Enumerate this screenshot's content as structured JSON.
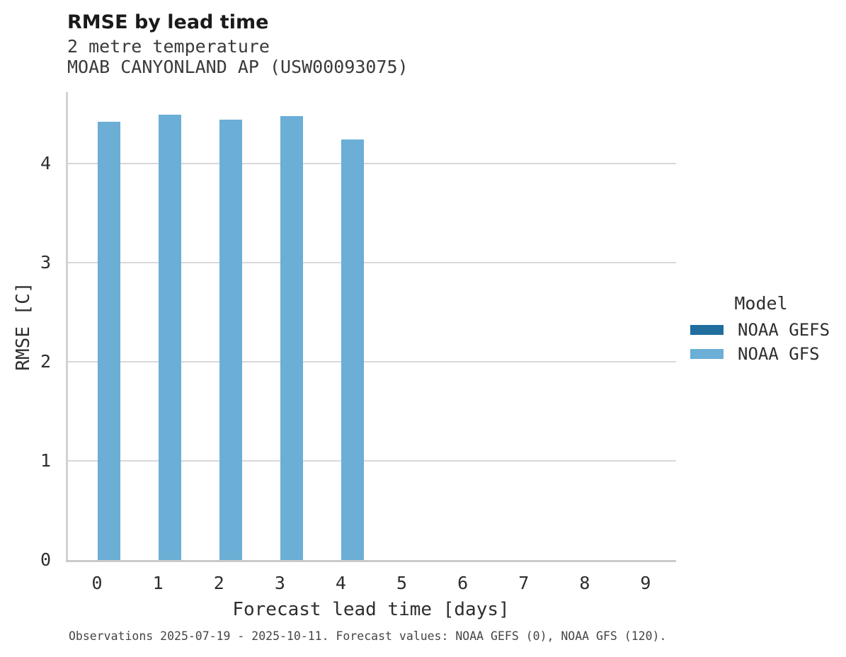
{
  "header": {
    "title": "RMSE by lead time",
    "subtitle_line1": "2 metre temperature",
    "subtitle_line2": "MOAB CANYONLAND AP (USW00093075)"
  },
  "chart_data": {
    "type": "bar",
    "title": "RMSE by lead time",
    "subtitle": [
      "2 metre temperature",
      "MOAB CANYONLAND AP (USW00093075)"
    ],
    "xlabel": "Forecast lead time [days]",
    "ylabel": "RMSE [C]",
    "categories": [
      "0",
      "1",
      "2",
      "3",
      "4",
      "5",
      "6",
      "7",
      "8",
      "9"
    ],
    "series": [
      {
        "name": "NOAA GEFS",
        "color": "#1f6e9e",
        "values": [
          null,
          null,
          null,
          null,
          null,
          null,
          null,
          null,
          null,
          null
        ]
      },
      {
        "name": "NOAA GFS",
        "color": "#6baed6",
        "values": [
          4.42,
          4.49,
          4.44,
          4.48,
          4.24,
          null,
          null,
          null,
          null,
          null
        ]
      }
    ],
    "ylim": [
      0,
      4.72
    ],
    "yticks": [
      0,
      1,
      2,
      3,
      4
    ],
    "grid": "horizontal",
    "legend_title": "Model",
    "legend_position": "right"
  },
  "legend": {
    "title": "Model",
    "items": [
      {
        "label": "NOAA GEFS",
        "color": "#1f6e9e"
      },
      {
        "label": "NOAA GFS",
        "color": "#6baed6"
      }
    ]
  },
  "caption": "Observations 2025-07-19 - 2025-10-11. Forecast values: NOAA GEFS (0), NOAA GFS (120)."
}
